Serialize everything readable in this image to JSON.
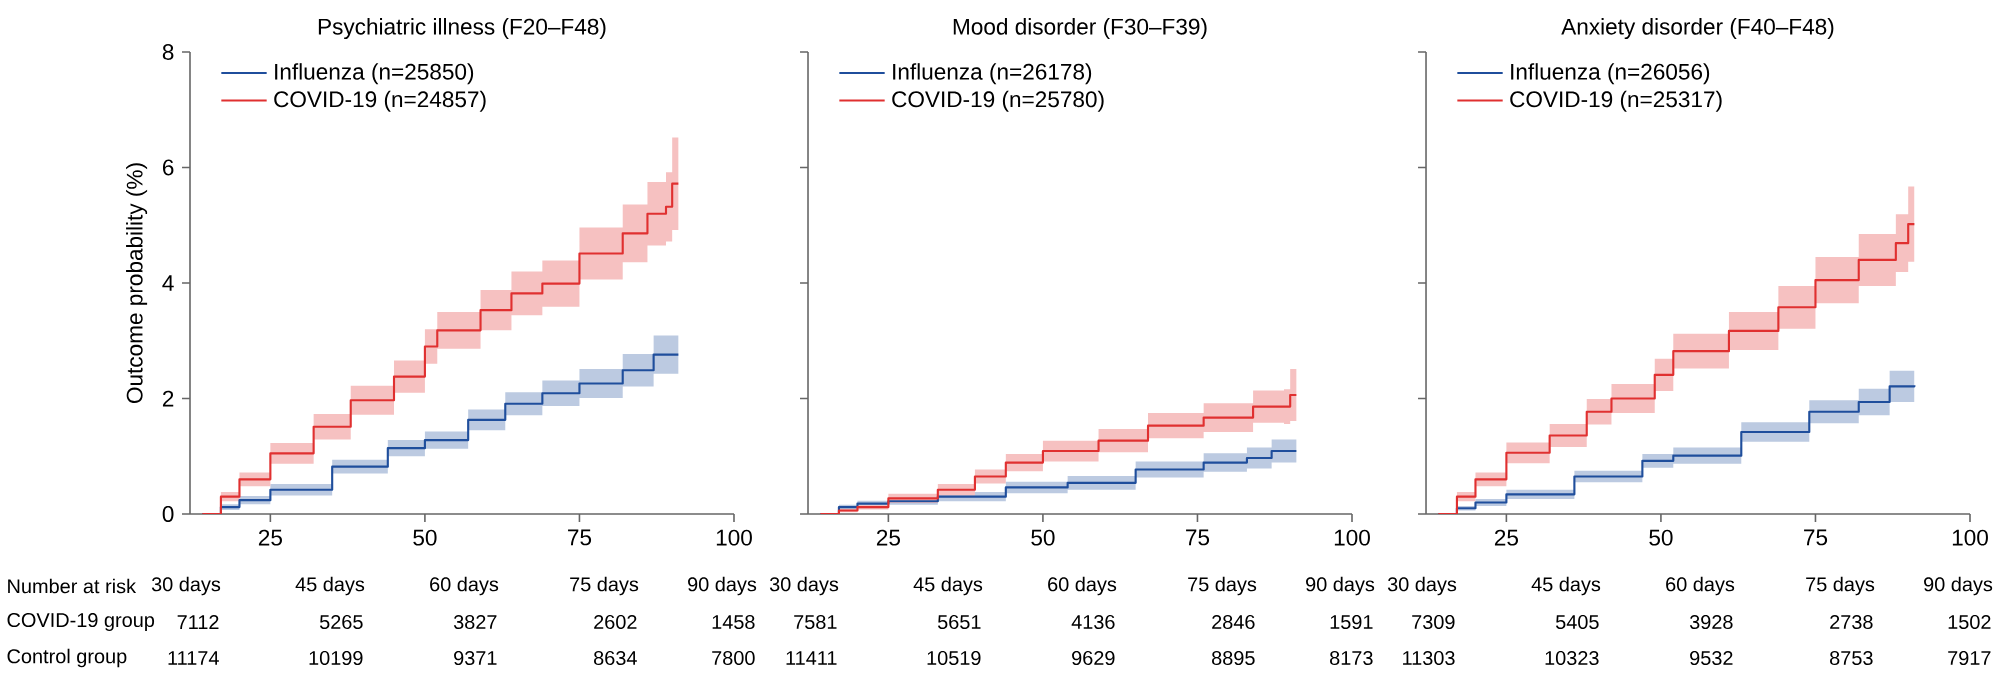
{
  "chart_data": [
    {
      "type": "step",
      "title": "Psychiatric illness (F20–F48)",
      "ylabel": "Outcome probability (%)",
      "xlim": [
        12,
        100
      ],
      "xticks": [
        25,
        50,
        75,
        100
      ],
      "ylim": [
        0,
        8
      ],
      "yticks": [
        0,
        2,
        4,
        6,
        8
      ],
      "legend": "top left",
      "series": [
        {
          "name": "Influenza (n=25850)",
          "color": "#1f4e9c",
          "x": [
            14,
            17,
            20,
            25,
            35,
            44,
            50,
            57,
            63,
            69,
            75,
            82,
            87,
            91
          ],
          "values": [
            0,
            0.12,
            0.24,
            0.42,
            0.82,
            1.14,
            1.28,
            1.63,
            1.91,
            2.09,
            2.26,
            2.49,
            2.76,
            2.76
          ],
          "lower": [
            0,
            0.07,
            0.17,
            0.32,
            0.7,
            1.0,
            1.13,
            1.45,
            1.71,
            1.87,
            2.01,
            2.21,
            2.43,
            2.38
          ],
          "upper": [
            0,
            0.17,
            0.31,
            0.52,
            0.94,
            1.28,
            1.43,
            1.81,
            2.11,
            2.31,
            2.51,
            2.77,
            3.09,
            3.14
          ]
        },
        {
          "name": "COVID-19 (n=24857)",
          "color": "#e03030",
          "x": [
            14,
            17,
            20,
            25,
            32,
            38,
            45,
            50,
            52,
            59,
            64,
            69,
            75,
            82,
            86,
            89,
            90,
            91
          ],
          "values": [
            0,
            0.3,
            0.6,
            1.05,
            1.51,
            1.97,
            2.38,
            2.9,
            3.18,
            3.53,
            3.82,
            3.99,
            4.51,
            4.86,
            5.2,
            5.32,
            5.72,
            5.72
          ],
          "lower": [
            0,
            0.22,
            0.48,
            0.87,
            1.29,
            1.72,
            2.1,
            2.6,
            2.86,
            3.18,
            3.44,
            3.59,
            4.06,
            4.36,
            4.65,
            4.72,
            4.92,
            4.87
          ],
          "upper": [
            0,
            0.38,
            0.72,
            1.23,
            1.73,
            2.22,
            2.66,
            3.2,
            3.5,
            3.88,
            4.2,
            4.39,
            4.96,
            5.36,
            5.75,
            5.92,
            6.52,
            6.57
          ]
        }
      ],
      "annotations": [
        "Number at risk",
        "COVID-19 group",
        "Control group",
        "30 days",
        "45 days",
        "60 days",
        "75 days",
        "90 days",
        "7112",
        "5265",
        "3827",
        "2602",
        "1458",
        "11174",
        "10199",
        "9371",
        "8634",
        "7800"
      ]
    },
    {
      "type": "step",
      "title": "Mood disorder (F30–F39)",
      "xlim": [
        12,
        100
      ],
      "xticks": [
        25,
        50,
        75,
        100
      ],
      "ylim": [
        0,
        8
      ],
      "yticks": [
        0,
        2,
        4,
        6,
        8
      ],
      "tick_labels": "x",
      "legend": "top left",
      "series": [
        {
          "name": "Influenza (n=26178)",
          "color": "#1f4e9c",
          "x": [
            14,
            17,
            20,
            25,
            33,
            44,
            54,
            65,
            76,
            83,
            87,
            91
          ],
          "values": [
            0,
            0.12,
            0.18,
            0.22,
            0.3,
            0.46,
            0.54,
            0.77,
            0.89,
            0.97,
            1.09,
            1.09
          ],
          "lower": [
            0,
            0.08,
            0.13,
            0.16,
            0.22,
            0.36,
            0.42,
            0.63,
            0.73,
            0.79,
            0.89,
            0.87
          ],
          "upper": [
            0,
            0.16,
            0.23,
            0.28,
            0.38,
            0.56,
            0.66,
            0.91,
            1.05,
            1.15,
            1.29,
            1.31
          ]
        },
        {
          "name": "COVID-19 (n=25780)",
          "color": "#e03030",
          "x": [
            14,
            17,
            20,
            25,
            33,
            39,
            44,
            50,
            59,
            67,
            76,
            84,
            89,
            90,
            91
          ],
          "values": [
            0,
            0.06,
            0.12,
            0.27,
            0.42,
            0.65,
            0.89,
            1.09,
            1.27,
            1.53,
            1.67,
            1.86,
            1.86,
            2.06,
            2.06
          ],
          "lower": [
            0,
            0.03,
            0.08,
            0.19,
            0.32,
            0.53,
            0.74,
            0.91,
            1.07,
            1.31,
            1.42,
            1.58,
            1.56,
            1.61,
            1.58
          ],
          "upper": [
            0,
            0.09,
            0.16,
            0.35,
            0.52,
            0.77,
            1.04,
            1.27,
            1.47,
            1.75,
            1.92,
            2.14,
            2.16,
            2.51,
            2.54
          ]
        }
      ],
      "annotations": [
        "30 days",
        "45 days",
        "60 days",
        "75 days",
        "90 days",
        "7581",
        "5651",
        "4136",
        "2846",
        "1591",
        "11411",
        "10519",
        "9629",
        "8895",
        "8173"
      ]
    },
    {
      "type": "step",
      "title": "Anxiety disorder (F40–F48)",
      "xlim": [
        12,
        100
      ],
      "xticks": [
        25,
        50,
        75,
        100
      ],
      "ylim": [
        0,
        8
      ],
      "yticks": [
        0,
        2,
        4,
        6,
        8
      ],
      "tick_labels": "x",
      "legend": "top left",
      "series": [
        {
          "name": "Influenza (n=26056)",
          "color": "#1f4e9c",
          "x": [
            14,
            17,
            20,
            25,
            36,
            47,
            52,
            63,
            74,
            82,
            87,
            91
          ],
          "values": [
            0,
            0.1,
            0.2,
            0.34,
            0.65,
            0.92,
            1.01,
            1.42,
            1.77,
            1.94,
            2.21,
            2.23
          ],
          "lower": [
            0,
            0.06,
            0.14,
            0.26,
            0.55,
            0.8,
            0.87,
            1.25,
            1.57,
            1.71,
            1.94,
            1.93
          ],
          "upper": [
            0,
            0.14,
            0.26,
            0.42,
            0.75,
            1.04,
            1.15,
            1.59,
            1.97,
            2.17,
            2.48,
            2.53
          ]
        },
        {
          "name": "COVID-19 (n=25317)",
          "color": "#e03030",
          "x": [
            14,
            17,
            20,
            25,
            32,
            38,
            42,
            49,
            52,
            61,
            69,
            75,
            82,
            88,
            90,
            91
          ],
          "values": [
            0,
            0.3,
            0.6,
            1.06,
            1.36,
            1.77,
            2.0,
            2.41,
            2.82,
            3.17,
            3.58,
            4.05,
            4.4,
            4.69,
            5.02,
            5.02
          ],
          "lower": [
            0,
            0.22,
            0.48,
            0.88,
            1.16,
            1.55,
            1.75,
            2.13,
            2.52,
            2.84,
            3.21,
            3.65,
            3.95,
            4.19,
            4.37,
            4.32
          ],
          "upper": [
            0,
            0.38,
            0.72,
            1.24,
            1.56,
            1.99,
            2.25,
            2.69,
            3.12,
            3.5,
            3.95,
            4.45,
            4.85,
            5.19,
            5.67,
            5.72
          ]
        }
      ],
      "annotations": [
        "30 days",
        "45 days",
        "60 days",
        "75 days",
        "90 days",
        "7309",
        "5405",
        "3928",
        "2738",
        "1502",
        "11303",
        "10323",
        "9532",
        "8753",
        "7917"
      ]
    }
  ]
}
